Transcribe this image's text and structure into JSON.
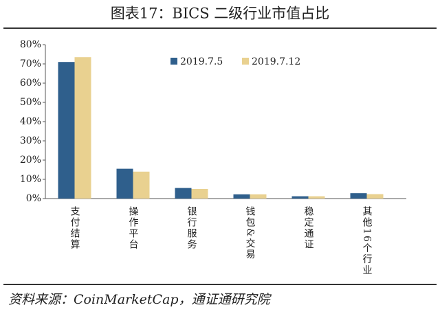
{
  "chart_data": {
    "type": "bar",
    "title": "图表17：BICS 二级行业市值占比",
    "source": "资料来源：CoinMarketCap，通证通研究院",
    "categories": [
      "支付结算",
      "操作平台",
      "银行服务",
      "钱包&交易",
      "稳定通证",
      "其他16个行业"
    ],
    "series": [
      {
        "name": "2019.7.5",
        "color": "#2f5f8c",
        "values": [
          71,
          15.5,
          5.5,
          2.2,
          1.2,
          2.8
        ]
      },
      {
        "name": "2019.7.12",
        "color": "#e9d190",
        "values": [
          73.5,
          14,
          5,
          2.2,
          1.2,
          2.3
        ]
      }
    ],
    "ylim": [
      0,
      80
    ],
    "yticks": [
      {
        "value": 0,
        "label": "0%"
      },
      {
        "value": 10,
        "label": "10%"
      },
      {
        "value": 20,
        "label": "20%"
      },
      {
        "value": 30,
        "label": "30%"
      },
      {
        "value": 40,
        "label": "40%"
      },
      {
        "value": 50,
        "label": "50%"
      },
      {
        "value": 60,
        "label": "60%"
      },
      {
        "value": 70,
        "label": "70%"
      },
      {
        "value": 80,
        "label": "80%"
      }
    ],
    "grid": false,
    "legend": "top"
  }
}
